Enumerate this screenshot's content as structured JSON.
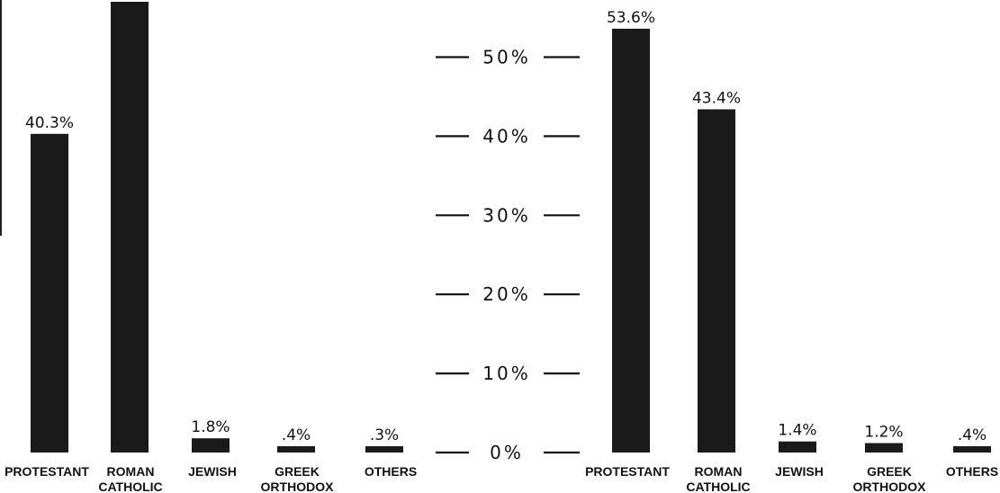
{
  "chart_data": [
    {
      "type": "bar",
      "categories": [
        "PROTESTANT",
        "ROMAN CATHOLIC",
        "JEWISH",
        "GREEK ORTHODOX",
        "OTHERS"
      ],
      "category_lines": [
        [
          "PROTESTANT"
        ],
        [
          "ROMAN",
          "CATHOLIC"
        ],
        [
          "JEWISH"
        ],
        [
          "GREEK",
          "ORTHODOX"
        ],
        [
          "OTHERS"
        ]
      ],
      "values": [
        40.3,
        57.0,
        1.8,
        0.4,
        0.3
      ],
      "value_labels": [
        "40.3%",
        "",
        "1.8%",
        ".4%",
        ".3%"
      ],
      "ylim": [
        0,
        60
      ],
      "colors": {
        "bar": "#1a1a1a"
      }
    },
    {
      "type": "bar",
      "categories": [
        "PROTESTANT",
        "ROMAN CATHOLIC",
        "JEWISH",
        "GREEK ORTHODOX",
        "OTHERS"
      ],
      "category_lines": [
        [
          "PROTESTANT"
        ],
        [
          "ROMAN",
          "CATHOLIC"
        ],
        [
          "JEWISH"
        ],
        [
          "GREEK",
          "ORTHODOX"
        ],
        [
          "OTHERS"
        ]
      ],
      "values": [
        53.6,
        43.4,
        1.4,
        1.2,
        0.4
      ],
      "value_labels": [
        "53.6%",
        "43.4%",
        "1.4%",
        "1.2%",
        ".4%"
      ],
      "ylim": [
        0,
        60
      ],
      "colors": {
        "bar": "#1a1a1a"
      }
    }
  ],
  "axis": {
    "ticks": [
      0,
      10,
      20,
      30,
      40,
      50
    ],
    "tick_labels": [
      "0%",
      "10%",
      "20%",
      "30%",
      "40%",
      "50%"
    ]
  }
}
